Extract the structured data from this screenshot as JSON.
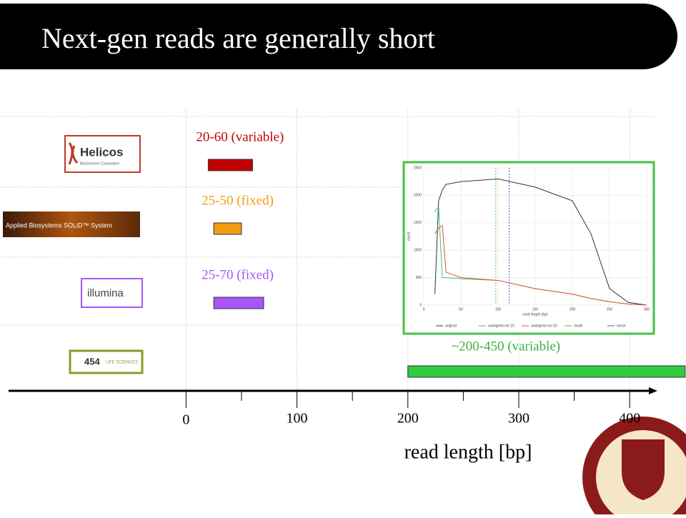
{
  "title": "Next-gen reads are generally short",
  "logos": {
    "helicos": "Helicos",
    "helicos_sub": "BioSciences Corporation",
    "solid": "Applied Biosystems SOLiD™ System",
    "illumina": "illumina",
    "454_num": "454",
    "454_text": "LIFE SCIENCES"
  },
  "chart_data": [
    {
      "type": "range_bar",
      "x_label": "read length [bp]",
      "categories": [
        "Helicos",
        "Applied Biosystems SOLiD™ System",
        "illumina",
        "454 LIFE SCIENCES"
      ],
      "bars": [
        {
          "label": "20-60 (variable)",
          "low": 20,
          "high": 60,
          "color": "#c00000"
        },
        {
          "label": "25-50 (fixed)",
          "low": 25,
          "high": 50,
          "color": "#f39c12"
        },
        {
          "label": "25-70 (fixed)",
          "low": 25,
          "high": 70,
          "color": "#a855f7"
        },
        {
          "label": "~200-450 (variable)",
          "low": 200,
          "high": 450,
          "color": "#2ecc40"
        }
      ],
      "xlim": [
        -160,
        425
      ],
      "xticks": [
        0,
        100,
        200,
        300,
        400
      ],
      "minor_xticks": [
        50,
        150,
        250,
        350
      ],
      "grid": true
    },
    {
      "type": "line",
      "x_label": "read length (bp)",
      "y_label": "count",
      "x": [
        15,
        20,
        25,
        30,
        50,
        100,
        150,
        200,
        225,
        250,
        275,
        300
      ],
      "series": [
        {
          "name": "original",
          "color": "#333333",
          "values": [
            200,
            1900,
            2100,
            2200,
            2250,
            2300,
            2150,
            1900,
            1300,
            300,
            50,
            0
          ]
        },
        {
          "name": "unaligned ext 10",
          "color": "#2ecc71",
          "values": [
            1700,
            1800,
            500,
            500,
            480,
            450,
            300,
            200,
            120,
            60,
            20,
            0
          ]
        },
        {
          "name": "unaligned ext 20",
          "color": "#e74c3c",
          "values": [
            1300,
            1400,
            1450,
            600,
            500,
            450,
            300,
            200,
            120,
            60,
            20,
            0
          ]
        }
      ],
      "vlines": [
        {
          "name": "mode",
          "color": "#33cc33",
          "value": 97
        },
        {
          "name": "mean",
          "color": "#5555cc",
          "value": 115
        }
      ],
      "xlim": [
        0,
        300
      ],
      "xticks": [
        0,
        50,
        100,
        150,
        200,
        250,
        300
      ],
      "ylim": [
        0,
        2500
      ],
      "yticks": [
        0,
        500,
        1000,
        1500,
        2000,
        2500
      ]
    }
  ]
}
